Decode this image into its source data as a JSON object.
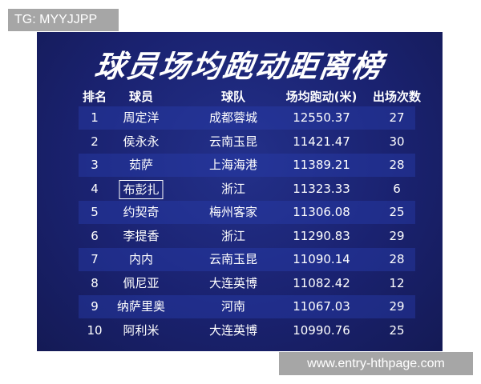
{
  "watermark_top": "TG: MYYJJPP",
  "watermark_bottom": "www.entry-hthpage.com",
  "title": "球员场均跑动距离榜",
  "headers": [
    "排名",
    "球员",
    "球队",
    "场均跑动(米)",
    "出场次数"
  ],
  "rows": [
    [
      "1",
      "周定洋",
      "成都蓉城",
      "12550.37",
      "27"
    ],
    [
      "2",
      "侯永永",
      "云南玉昆",
      "11421.47",
      "30"
    ],
    [
      "3",
      "茹萨",
      "上海海港",
      "11389.21",
      "28"
    ],
    [
      "4",
      "布彭扎",
      "浙江",
      "11323.33",
      "6"
    ],
    [
      "5",
      "约契奇",
      "梅州客家",
      "11306.08",
      "25"
    ],
    [
      "6",
      "李提香",
      "浙江",
      "11290.83",
      "29"
    ],
    [
      "7",
      "内内",
      "云南玉昆",
      "11090.14",
      "28"
    ],
    [
      "8",
      "佩尼亚",
      "大连英博",
      "11082.42",
      "12"
    ],
    [
      "9",
      "纳萨里奥",
      "河南",
      "11067.03",
      "29"
    ],
    [
      "10",
      "阿利米",
      "大连英博",
      "10990.76",
      "25"
    ]
  ],
  "highlighted_player": "布彭扎"
}
